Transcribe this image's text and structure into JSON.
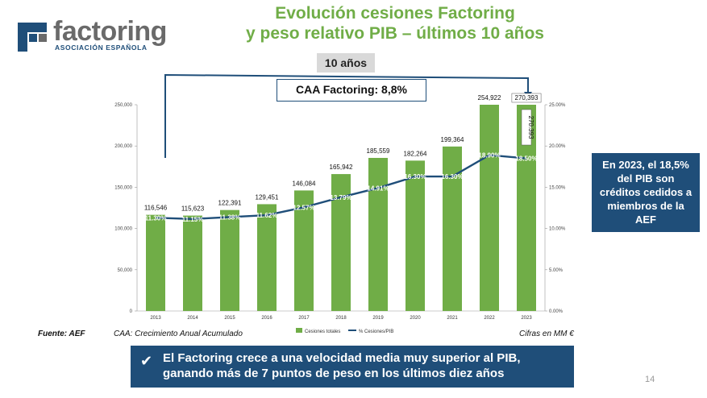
{
  "logo": {
    "word": "factoring",
    "subtitle": "ASOCIACIÓN ESPAÑOLA"
  },
  "title": {
    "line1": "Evolución cesiones Factoring",
    "line2": "y peso relativo PIB – últimos 10 años"
  },
  "years_badge": "10 años",
  "caa_box": "CAA Factoring: 8,8%",
  "info_box": "En 2023, el 18,5% del PIB son créditos cedidos a miembros de la AEF",
  "footer": {
    "source": "Fuente: AEF",
    "caa_note": "CAA: Crecimiento Anual Acumulado",
    "units": "Cifras en MM €"
  },
  "banner": {
    "text": "El Factoring crece a una velocidad media muy superior al PIB, ganando más de 7 puntos de peso en los últimos diez años"
  },
  "page_number": "14",
  "colors": {
    "bar": "#70ad47",
    "line": "#1f4e79",
    "title": "#70ad47",
    "box": "#1f4e79"
  },
  "chart_data": {
    "type": "bar",
    "categories": [
      "2013",
      "2014",
      "2015",
      "2016",
      "2017",
      "2018",
      "2019",
      "2020",
      "2021",
      "2022",
      "2023"
    ],
    "series": [
      {
        "name": "Cesiones totales",
        "type": "bar",
        "axis": "left",
        "values": [
          116546,
          115623,
          122391,
          129451,
          146084,
          165942,
          185559,
          182264,
          199364,
          254922,
          270393
        ],
        "labels": [
          "116,546",
          "115,623",
          "122,391",
          "129,451",
          "146,084",
          "165,942",
          "185,559",
          "182,264",
          "199,364",
          "254,922",
          "270,393"
        ]
      },
      {
        "name": "% Cesiones/PIB",
        "type": "line",
        "axis": "right",
        "values": [
          11.3,
          11.15,
          11.38,
          11.62,
          12.57,
          13.79,
          14.91,
          16.3,
          16.3,
          18.9,
          18.5
        ],
        "labels": [
          "11.30%",
          "11.15%",
          "11.38%",
          "11.62%",
          "12.57%",
          "13.79%",
          "14.91%",
          "16.30%",
          "16.30%",
          "18.90%",
          "18.50%"
        ]
      }
    ],
    "y_left": {
      "min": 0,
      "max": 250000,
      "ticks": [
        "0",
        "50,000",
        "100,000",
        "150,000",
        "200,000",
        "250,000"
      ]
    },
    "y_right": {
      "min": 0,
      "max": 25,
      "ticks": [
        "0.00%",
        "5.00%",
        "10.00%",
        "15.00%",
        "20.00%",
        "25.00%"
      ]
    },
    "legend_position": "bottom",
    "grid": false,
    "annotation": {
      "text": "270,393",
      "rotated_label": "270.393"
    }
  }
}
